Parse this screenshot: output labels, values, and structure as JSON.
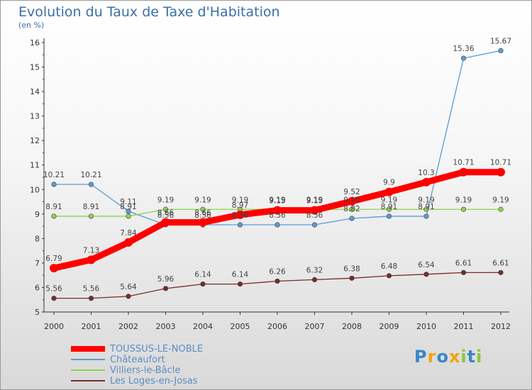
{
  "title": "Evolution du Taux de Taxe d'Habitation",
  "subtitle": "(en %)",
  "logo": {
    "text": "Proxiti",
    "letters": [
      {
        "ch": "P",
        "color": "#3a86c8"
      },
      {
        "ch": "r",
        "color": "#f2a20c"
      },
      {
        "ch": "o",
        "color": "#3a86c8"
      },
      {
        "ch": "x",
        "color": "#f2a20c"
      },
      {
        "ch": "i",
        "color": "#8cc63f"
      },
      {
        "ch": "t",
        "color": "#3a86c8"
      },
      {
        "ch": "i",
        "color": "#8cc63f"
      }
    ]
  },
  "chart_data": {
    "type": "line",
    "title": "Evolution du Taux de Taxe d'Habitation",
    "ylabel": "(en %)",
    "xlabel": "",
    "ylim": [
      5,
      16
    ],
    "yticks": [
      5,
      6,
      7,
      8,
      9,
      10,
      11,
      12,
      13,
      14,
      15,
      16
    ],
    "grid": false,
    "legend": "bottom-left",
    "x": [
      "2000",
      "2001",
      "2002",
      "2003",
      "2004",
      "2005",
      "2006",
      "2007",
      "2008",
      "2009",
      "2010",
      "2011",
      "2012"
    ],
    "series": [
      {
        "name": "TOUSSUS-LE-NOBLE",
        "color": "#ff0000",
        "emphasis": true,
        "values": [
          6.79,
          7.13,
          7.84,
          8.66,
          8.66,
          8.97,
          9.15,
          9.15,
          9.52,
          9.9,
          10.3,
          10.71,
          10.71
        ],
        "labels": [
          "6.79",
          "7.13",
          "7.84",
          "8.66",
          "8.66",
          "8.97",
          "9.15",
          "9.15",
          "9.52",
          "9.9",
          "10.3",
          "10.71",
          "10.71"
        ]
      },
      {
        "name": "Châteaufort",
        "color": "#5b9bd5",
        "emphasis": false,
        "values": [
          10.21,
          10.21,
          9.11,
          8.56,
          8.56,
          8.56,
          8.56,
          8.56,
          8.82,
          8.91,
          8.91,
          15.36,
          15.67
        ],
        "labels": [
          "10.21",
          "10.21",
          "9.11",
          "8.56",
          "8.56",
          "8.56",
          "8.56",
          "8.56",
          "8.82",
          "8.91",
          "8.91",
          "15.36",
          "15.67"
        ]
      },
      {
        "name": "Villiers-le-Bâcle",
        "color": "#8fd14f",
        "emphasis": false,
        "values": [
          8.91,
          8.91,
          8.91,
          9.19,
          9.19,
          9.19,
          9.19,
          9.19,
          9.19,
          9.19,
          9.19,
          9.19,
          9.19
        ],
        "labels": [
          "8.91",
          "8.91",
          "8.91",
          "9.19",
          "9.19",
          "9.19",
          "9.19",
          "9.19",
          "9.19",
          "9.19",
          "9.19",
          "9.19",
          "9.19"
        ]
      },
      {
        "name": "Les Loges-en-Josas",
        "color": "#7a2a2a",
        "emphasis": false,
        "values": [
          5.56,
          5.56,
          5.64,
          5.96,
          6.14,
          6.14,
          6.26,
          6.32,
          6.38,
          6.48,
          6.54,
          6.61,
          6.61
        ],
        "labels": [
          "5.56",
          "5.56",
          "5.64",
          "5.96",
          "6.14",
          "6.14",
          "6.26",
          "6.32",
          "6.38",
          "6.48",
          "6.54",
          "6.61",
          "6.61"
        ]
      }
    ]
  }
}
